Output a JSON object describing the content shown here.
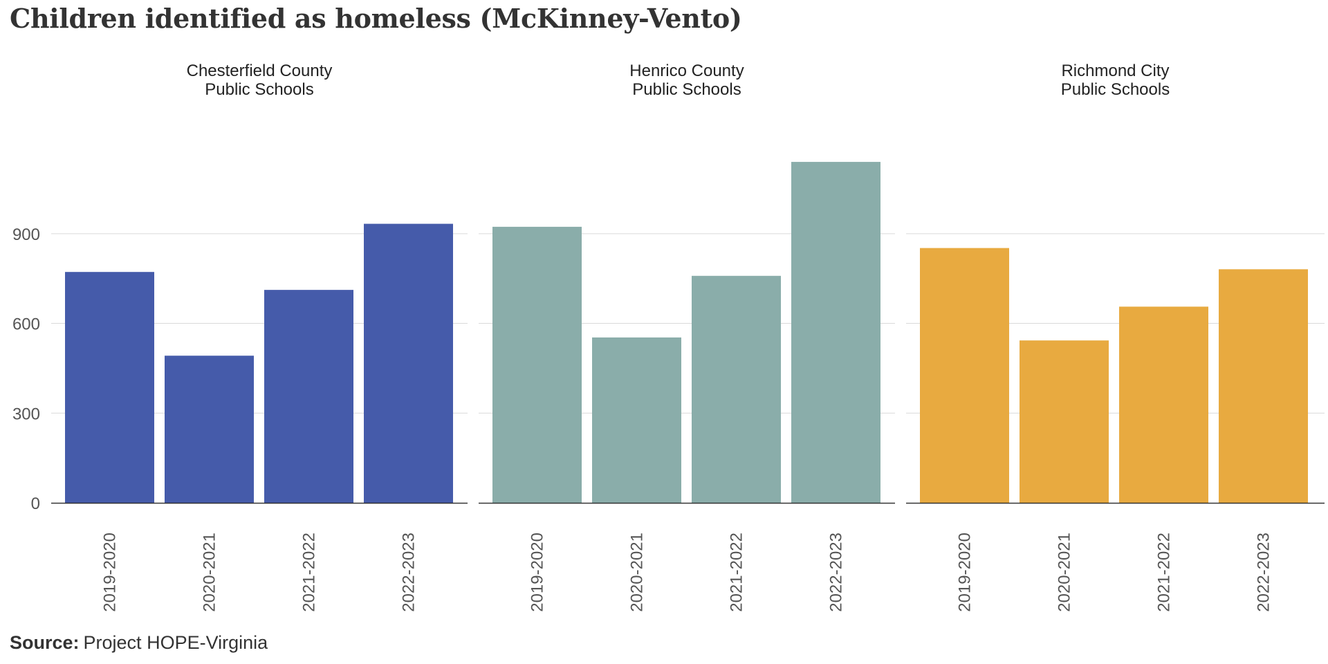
{
  "title": "Children identified as homeless (McKinney-Vento)",
  "source": {
    "label": "Source:",
    "text": "Project HOPE-Virginia"
  },
  "chart_data": {
    "type": "bar",
    "title": "Children identified as homeless (McKinney-Vento)",
    "categories": [
      "2019-2020",
      "2020-2021",
      "2021-2022",
      "2022-2023"
    ],
    "ylim": [
      0,
      1140
    ],
    "yticks": [
      0,
      300,
      600,
      900
    ],
    "grid": true,
    "panels": [
      {
        "title_lines": [
          "Chesterfield County",
          "Public Schools"
        ],
        "color": "#455BAA",
        "values": [
          772,
          492,
          712,
          933
        ]
      },
      {
        "title_lines": [
          "Henrico County",
          "Public Schools"
        ],
        "color": "#8AADAA",
        "values": [
          923,
          553,
          759,
          1140
        ]
      },
      {
        "title_lines": [
          "Richmond City",
          "Public Schools"
        ],
        "color": "#E8AA40",
        "values": [
          852,
          543,
          656,
          781
        ]
      }
    ]
  }
}
